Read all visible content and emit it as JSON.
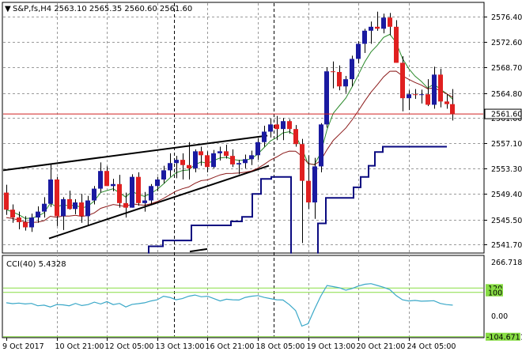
{
  "header": {
    "symbol_arrow": "▼",
    "title": "S&P,fs,H4  2563.10  2565.35  2560.60  2561.60"
  },
  "indicator": {
    "label": "CCI(40)  5.4328",
    "levels": [
      "120",
      "100",
      "0.00"
    ],
    "axis_top": "266.7182",
    "axis_bottom": "-104.6711",
    "current_label": "-104.6711"
  },
  "colors": {
    "bull": "#1a1aa0",
    "bear": "#e02020",
    "ma_fast": "#2a8a2a",
    "ma_slow": "#8b1a1a",
    "stop_line": "#0a0a80",
    "cci_line": "#3aa8c8",
    "cci_level": "#88dd44",
    "price_line": "#d02020",
    "grid": "#9a9a9a",
    "wedge": "#000000"
  },
  "chart_data": {
    "type": "candlestick",
    "title": "S&P,fs,H4  2563.10  2565.35  2560.60  2561.60",
    "ylim": [
      2540.5,
      2578.5
    ],
    "y_ticks": [
      "2576.40",
      "2572.60",
      "2568.70",
      "2564.80",
      "2561.00",
      "2557.10",
      "2553.30",
      "2549.40",
      "2545.50",
      "2541.70"
    ],
    "current_price": "2561.60",
    "x_ticks": [
      "9 Oct 2017",
      "10 Oct 21:00",
      "12 Oct 05:00",
      "13 Oct 13:00",
      "16 Oct 21:00",
      "18 Oct 05:00",
      "19 Oct 13:00",
      "20 Oct 21:00",
      "24 Oct 05:00"
    ],
    "candles": [
      [
        2549.6,
        2550.8,
        2546.2,
        2547.0
      ],
      [
        2547.0,
        2547.8,
        2545.0,
        2545.8
      ],
      [
        2545.8,
        2546.7,
        2544.0,
        2545.1
      ],
      [
        2545.1,
        2546.0,
        2543.8,
        2544.3
      ],
      [
        2544.3,
        2546.4,
        2543.6,
        2545.8
      ],
      [
        2545.8,
        2547.5,
        2545.0,
        2546.7
      ],
      [
        2546.7,
        2548.9,
        2545.8,
        2547.9
      ],
      [
        2547.9,
        2553.9,
        2547.4,
        2551.6
      ],
      [
        2551.6,
        2552.0,
        2544.5,
        2546.0
      ],
      [
        2546.0,
        2548.9,
        2543.9,
        2548.6
      ],
      [
        2548.6,
        2549.9,
        2547.0,
        2547.1
      ],
      [
        2547.1,
        2548.6,
        2546.3,
        2548.1
      ],
      [
        2548.1,
        2549.4,
        2545.0,
        2546.0
      ],
      [
        2546.0,
        2549.1,
        2544.5,
        2548.4
      ],
      [
        2548.4,
        2550.6,
        2547.8,
        2550.2
      ],
      [
        2550.2,
        2554.2,
        2549.6,
        2552.9
      ],
      [
        2552.9,
        2553.6,
        2550.6,
        2550.6
      ],
      [
        2550.6,
        2551.7,
        2549.8,
        2550.9
      ],
      [
        2550.9,
        2552.3,
        2547.3,
        2548.0
      ],
      [
        2548.0,
        2549.6,
        2545.8,
        2547.3
      ],
      [
        2547.3,
        2552.4,
        2547.3,
        2552.0
      ],
      [
        2552.0,
        2552.7,
        2547.6,
        2548.0
      ],
      [
        2548.0,
        2549.7,
        2546.7,
        2548.4
      ],
      [
        2548.4,
        2550.9,
        2547.8,
        2550.6
      ],
      [
        2550.6,
        2552.0,
        2549.8,
        2551.6
      ],
      [
        2551.6,
        2553.7,
        2551.0,
        2553.0
      ],
      [
        2553.0,
        2555.6,
        2552.0,
        2554.1
      ],
      [
        2554.1,
        2555.2,
        2551.8,
        2554.6
      ],
      [
        2554.6,
        2555.6,
        2551.6,
        2553.8
      ],
      [
        2553.8,
        2557.3,
        2551.6,
        2553.3
      ],
      [
        2553.3,
        2556.2,
        2552.7,
        2555.9
      ],
      [
        2555.9,
        2556.6,
        2553.7,
        2555.3
      ],
      [
        2555.3,
        2555.9,
        2552.7,
        2553.5
      ],
      [
        2553.5,
        2556.1,
        2553.3,
        2555.6
      ],
      [
        2555.6,
        2556.6,
        2554.5,
        2555.9
      ],
      [
        2555.9,
        2556.9,
        2554.8,
        2555.2
      ],
      [
        2555.2,
        2556.2,
        2553.5,
        2553.9
      ],
      [
        2553.9,
        2554.6,
        2552.4,
        2554.1
      ],
      [
        2554.1,
        2555.4,
        2553.3,
        2554.7
      ],
      [
        2554.7,
        2556.0,
        2553.8,
        2555.3
      ],
      [
        2555.3,
        2557.9,
        2554.6,
        2557.3
      ],
      [
        2557.3,
        2559.8,
        2556.6,
        2558.9
      ],
      [
        2558.9,
        2560.9,
        2558.0,
        2560.0
      ],
      [
        2560.0,
        2561.3,
        2557.6,
        2559.3
      ],
      [
        2559.3,
        2561.0,
        2557.6,
        2560.5
      ],
      [
        2560.5,
        2560.8,
        2558.6,
        2559.3
      ],
      [
        2559.3,
        2559.9,
        2556.6,
        2557.0
      ],
      [
        2557.0,
        2557.8,
        2541.9,
        2551.4
      ],
      [
        2551.4,
        2555.3,
        2547.1,
        2548.1
      ],
      [
        2548.1,
        2554.9,
        2545.6,
        2553.6
      ],
      [
        2553.6,
        2560.2,
        2552.7,
        2560.0
      ],
      [
        2560.0,
        2568.7,
        2559.5,
        2568.1
      ],
      [
        2568.1,
        2569.6,
        2565.5,
        2568.0
      ],
      [
        2568.0,
        2569.0,
        2565.2,
        2565.8
      ],
      [
        2565.8,
        2567.4,
        2564.8,
        2566.9
      ],
      [
        2566.9,
        2570.5,
        2565.8,
        2570.0
      ],
      [
        2570.0,
        2572.7,
        2569.3,
        2572.3
      ],
      [
        2572.3,
        2574.6,
        2570.9,
        2574.3
      ],
      [
        2574.3,
        2575.7,
        2572.3,
        2574.9
      ],
      [
        2574.9,
        2577.2,
        2574.3,
        2574.6
      ],
      [
        2574.6,
        2576.9,
        2573.9,
        2576.3
      ],
      [
        2576.3,
        2577.0,
        2573.6,
        2574.9
      ],
      [
        2574.9,
        2575.9,
        2569.4,
        2569.4
      ],
      [
        2569.4,
        2570.4,
        2562.0,
        2564.0
      ],
      [
        2564.0,
        2565.2,
        2562.2,
        2564.6
      ],
      [
        2564.6,
        2565.4,
        2563.9,
        2564.5
      ],
      [
        2564.5,
        2565.3,
        2563.2,
        2564.6
      ],
      [
        2564.6,
        2566.9,
        2562.8,
        2563.0
      ],
      [
        2563.0,
        2568.8,
        2562.4,
        2567.6
      ],
      [
        2567.6,
        2568.5,
        2562.6,
        2563.5
      ],
      [
        2563.5,
        2564.6,
        2562.4,
        2563.1
      ],
      [
        2563.1,
        2565.4,
        2560.6,
        2561.6
      ]
    ]
  }
}
